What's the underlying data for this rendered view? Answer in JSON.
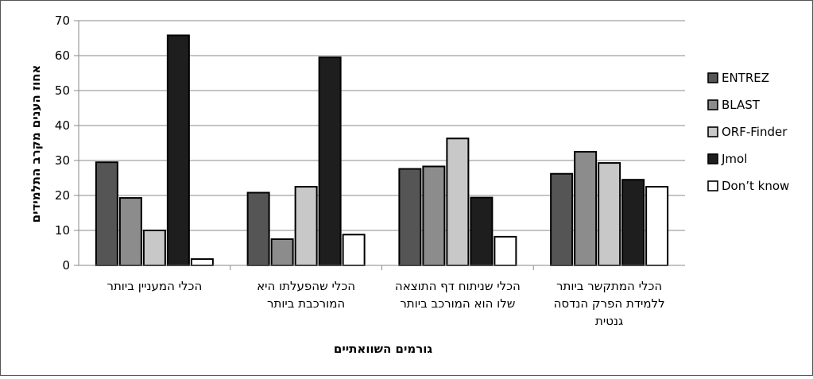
{
  "chart_data": {
    "type": "bar",
    "title": "",
    "xlabel": "גורמים השוואתיים",
    "ylabel": "אחוז הענים מקרב התלמידים",
    "ylim": [
      0,
      70
    ],
    "yticks": [
      0,
      10,
      20,
      30,
      40,
      50,
      60,
      70
    ],
    "grid": true,
    "legend_position": "right",
    "categories": [
      [
        "הכלי המעניין ביותר"
      ],
      [
        "הכלי שהפעלתו היא",
        "המורכבת ביותר"
      ],
      [
        "הכלי שניתוח דף התוצאה",
        "שלו הוא המורכב ביותר"
      ],
      [
        "הכלי המתקשר ביותר",
        "ללמידת הפרק הנדסה",
        "גנטית"
      ]
    ],
    "series": [
      {
        "name": "ENTREZ",
        "color": "#555555",
        "values": [
          29.5,
          20.8,
          27.6,
          26.2
        ]
      },
      {
        "name": "BLAST",
        "color": "#8c8c8c",
        "values": [
          19.3,
          7.5,
          28.3,
          32.5
        ]
      },
      {
        "name": "ORF-Finder",
        "color": "#c8c8c8",
        "values": [
          10.0,
          22.5,
          36.3,
          29.3
        ]
      },
      {
        "name": "Jmol",
        "color": "#1e1e1e",
        "values": [
          65.8,
          59.5,
          19.4,
          24.5
        ]
      },
      {
        "name": "Don’t know",
        "color": "#ffffff",
        "values": [
          1.8,
          8.8,
          8.2,
          22.5
        ]
      }
    ]
  }
}
